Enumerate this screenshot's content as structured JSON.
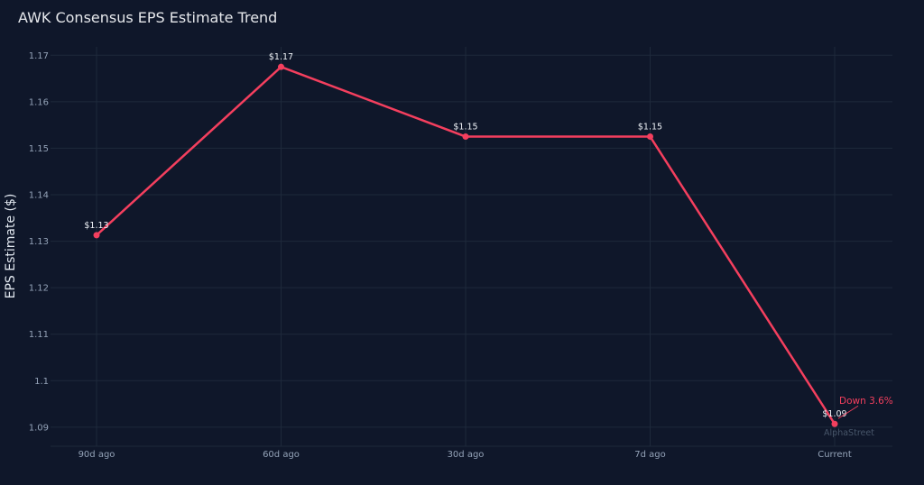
{
  "chart_data": {
    "type": "line",
    "title": "AWK Consensus EPS Estimate Trend",
    "xlabel": "",
    "ylabel": "EPS Estimate ($)",
    "categories": [
      "90d ago",
      "60d ago",
      "30d ago",
      "7d ago",
      "Current"
    ],
    "series": [
      {
        "values": [
          1.1313,
          1.1675,
          1.1525,
          1.1525,
          1.0907
        ],
        "data_labels": [
          "$1.13",
          "$1.17",
          "$1.15",
          "$1.15",
          "$1.09"
        ],
        "color": "#f43f5e"
      }
    ],
    "yticks": [
      1.09,
      1.1,
      1.11,
      1.12,
      1.13,
      1.14,
      1.15,
      1.16,
      1.17
    ],
    "ytick_labels": [
      "1.09",
      "1.1",
      "1.11",
      "1.12",
      "1.13",
      "1.14",
      "1.15",
      "1.16",
      "1.17"
    ],
    "ylim": [
      1.0859,
      1.1718
    ],
    "grid": true,
    "annotation": {
      "text": "Down 3.6%",
      "color": "#f43f5e"
    },
    "watermark": "AlphaStreet",
    "colors": {
      "background": "#0f172a",
      "grid": "#1e293b",
      "axis": "#1e293b",
      "tick_text": "#94a3b8",
      "line": "#f43f5e"
    }
  }
}
